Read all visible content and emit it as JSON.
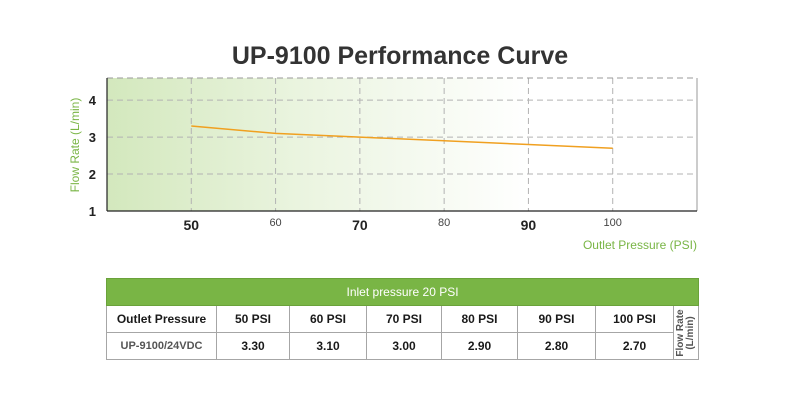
{
  "title": "UP-9100 Performance Curve",
  "colors": {
    "accent_green": "#79b545",
    "axis_label_green": "#79b545",
    "line_orange": "#f0a020",
    "grid": "#b3b3b3"
  },
  "chart_data": {
    "type": "line",
    "title": "UP-9100 Performance Curve",
    "xlabel": "Outlet Pressure (PSI)",
    "ylabel": "Flow Rate (L/min)",
    "x_ticks": [
      50,
      60,
      70,
      80,
      90,
      100
    ],
    "y_ticks": [
      1,
      2,
      3,
      4
    ],
    "xlim": [
      40,
      110
    ],
    "ylim": [
      1,
      4.6
    ],
    "grid": true,
    "series": [
      {
        "x": [
          50,
          60,
          70,
          80,
          90,
          100
        ],
        "values": [
          3.3,
          3.1,
          3.0,
          2.9,
          2.8,
          2.7
        ]
      }
    ]
  },
  "table": {
    "inlet_header": "Inlet pressure 20 PSI",
    "row_header": "Outlet Pressure",
    "columns": [
      "50 PSI",
      "60 PSI",
      "70 PSI",
      "80 PSI",
      "90 PSI",
      "100 PSI"
    ],
    "model": "UP-9100/24VDC",
    "values": [
      "3.30",
      "3.10",
      "3.00",
      "2.90",
      "2.80",
      "2.70"
    ],
    "unit_label": "Flow Rate (L/min)"
  }
}
